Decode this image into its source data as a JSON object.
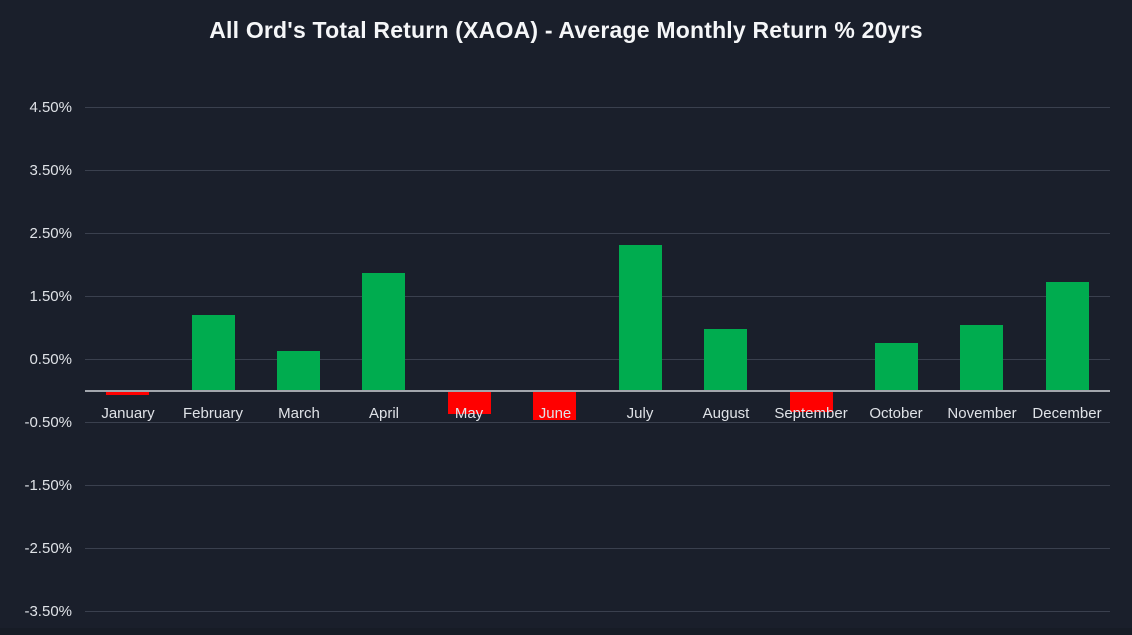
{
  "header": {
    "title": "All Ord's Total Return (XAOA) - Average Monthly Return % 20yrs"
  },
  "colors": {
    "background": "#1A1F2B",
    "positive_bar": "#00AC4F",
    "negative_bar": "#FF0000",
    "gridline": "#3A404E",
    "zero_axis": "#A2A6AD",
    "tick_text": "#DFE2E7",
    "title_text": "#F5F6F8"
  },
  "chart_data": {
    "type": "bar",
    "title": "All Ord's Total Return (XAOA) - Average Monthly Return % 20yrs",
    "categories": [
      "January",
      "February",
      "March",
      "April",
      "May",
      "June",
      "July",
      "August",
      "September",
      "October",
      "November",
      "December"
    ],
    "values": [
      -0.05,
      1.2,
      0.62,
      1.86,
      -0.35,
      -0.45,
      2.31,
      0.97,
      -0.31,
      0.76,
      1.04,
      1.73
    ],
    "xlabel": "",
    "ylabel": "",
    "y_tick_labels": [
      "4.50%",
      "3.50%",
      "2.50%",
      "1.50%",
      "0.50%",
      "-0.50%",
      "-1.50%",
      "-2.50%",
      "-3.50%"
    ],
    "y_tick_values": [
      4.5,
      3.5,
      2.5,
      1.5,
      0.5,
      -0.5,
      -1.5,
      -2.5,
      -3.5
    ],
    "ylim": [
      -3.9,
      4.95
    ],
    "grid": true,
    "legend": false,
    "bar_color_rule": "positive=green, negative=red"
  }
}
